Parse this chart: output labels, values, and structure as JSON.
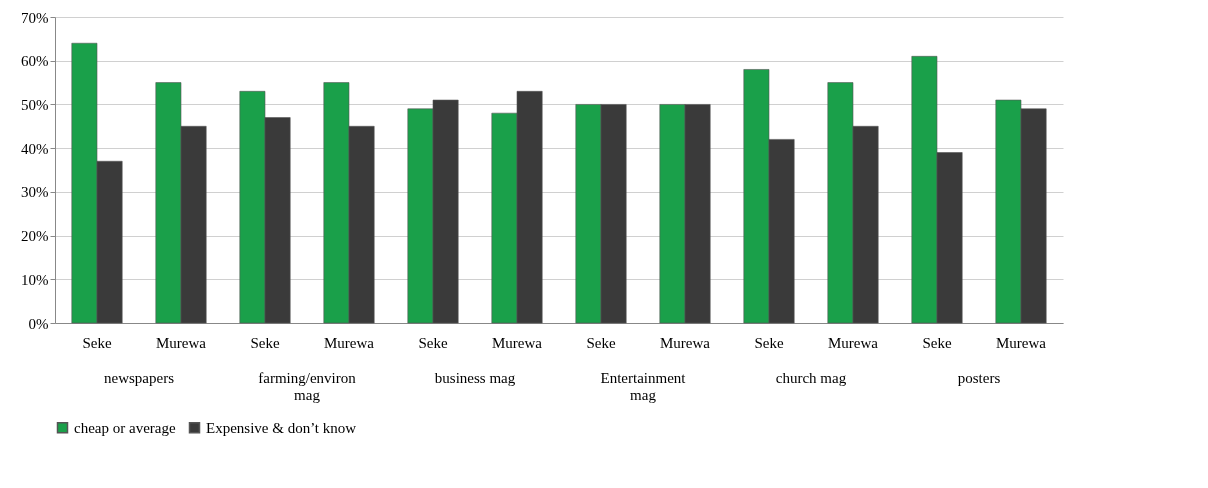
{
  "chart_data": {
    "type": "bar",
    "categories": [
      "Seke",
      "Murewa",
      "Seke",
      "Murewa",
      "Seke",
      "Murewa",
      "Seke",
      "Murewa",
      "Seke",
      "Murewa",
      "Seke",
      "Murewa"
    ],
    "annotations": [
      "newspapers",
      "farming/environ mag",
      "business mag",
      "Entertainment mag",
      "church mag",
      "posters"
    ],
    "series": [
      {
        "name": "cheap or average",
        "color": "#1aa04a",
        "values": [
          64,
          55,
          53,
          55,
          49,
          48,
          50,
          50,
          58,
          55,
          61,
          51
        ]
      },
      {
        "name": "Expensive & don’t know",
        "color": "#3a3a3a",
        "values": [
          37,
          45,
          47,
          45,
          51,
          53,
          50,
          50,
          42,
          45,
          39,
          49
        ]
      }
    ],
    "ylim": [
      0,
      70
    ],
    "yticks": [
      {
        "value": 0,
        "label": "0%"
      },
      {
        "value": 10,
        "label": "10%"
      },
      {
        "value": 20,
        "label": "20%"
      },
      {
        "value": 30,
        "label": "30%"
      },
      {
        "value": 40,
        "label": "40%"
      },
      {
        "value": 50,
        "label": "50%"
      },
      {
        "value": 60,
        "label": "60%"
      },
      {
        "value": 70,
        "label": "70%"
      }
    ],
    "grid": "y",
    "legend": "bottom"
  }
}
